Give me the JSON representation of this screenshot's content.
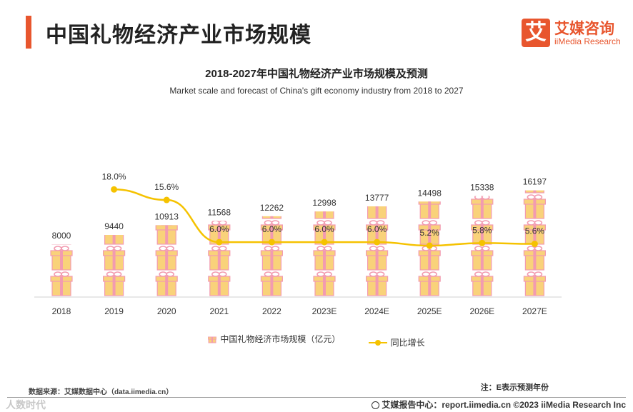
{
  "header": {
    "title": "中国礼物经济产业市场规模",
    "logo_mark": "艾",
    "logo_cn": "艾媒咨询",
    "logo_en": "iiMedia Research"
  },
  "chart_data": {
    "type": "bar",
    "title": "2018-2027年中国礼物经济产业市场规模及预测",
    "subtitle": "Market scale and forecast of China's gift economy industry from 2018 to 2027",
    "categories": [
      "2018",
      "2019",
      "2020",
      "2021",
      "2022",
      "2023E",
      "2024E",
      "2025E",
      "2026E",
      "2027E"
    ],
    "series": [
      {
        "name": "中国礼物经济市场规模（亿元）",
        "type": "bar",
        "values": [
          8000,
          9440,
          10913,
          11568,
          12262,
          12998,
          13777,
          14498,
          15338,
          16197
        ],
        "labels": [
          "8000",
          "9440",
          "10913",
          "11568",
          "12262",
          "12998",
          "13777",
          "14498",
          "15338",
          "16197"
        ]
      },
      {
        "name": "同比增长",
        "type": "line",
        "values": [
          null,
          18.0,
          15.6,
          6.0,
          6.0,
          6.0,
          6.0,
          5.2,
          5.8,
          5.6
        ],
        "labels": [
          "",
          "18.0%",
          "15.6%",
          "6.0%",
          "6.0%",
          "6.0%",
          "6.0%",
          "5.2%",
          "5.8%",
          "5.6%"
        ]
      }
    ],
    "ylim": [
      0,
      18000
    ],
    "y2lim": [
      0,
      40
    ],
    "grid": false,
    "legend": "bottom",
    "colors": {
      "gift_box": "#f9d27a",
      "gift_ribbon": "#f29bb0",
      "line": "#f5c200"
    }
  },
  "footer": {
    "source": "数据来源：艾媒数据中心（data.iimedia.cn）",
    "note": "注：E表示预测年份",
    "watermark": "人数时代",
    "credit": "艾媒报告中心：report.iimedia.cn  ©2023  iiMedia Research  Inc"
  }
}
